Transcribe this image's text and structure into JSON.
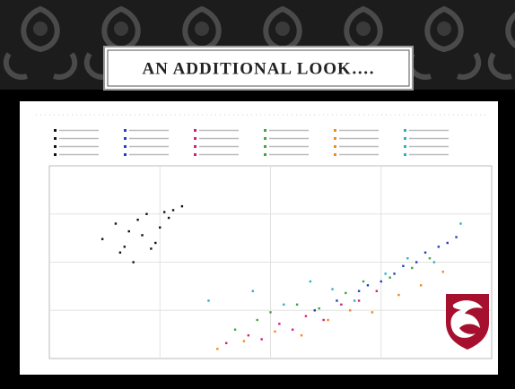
{
  "slide": {
    "title": "AN ADDITIONAL LOOK…."
  },
  "chart_data": {
    "type": "scatter",
    "xlim": [
      0,
      100
    ],
    "ylim": [
      0,
      100
    ],
    "series": [
      {
        "color": "#111111",
        "x": [
          12,
          15,
          17,
          18,
          20,
          21,
          22,
          24,
          25,
          27,
          28,
          30,
          16,
          19,
          23,
          26
        ],
        "values": [
          62,
          70,
          58,
          66,
          72,
          64,
          75,
          60,
          68,
          73,
          77,
          79,
          55,
          50,
          57,
          76
        ]
      },
      {
        "color": "#1f3fbf",
        "x": [
          60,
          65,
          70,
          72,
          75,
          78,
          80,
          83,
          85,
          88,
          90,
          92
        ],
        "values": [
          25,
          30,
          35,
          38,
          40,
          44,
          48,
          50,
          55,
          58,
          60,
          63
        ]
      },
      {
        "color": "#d0207a",
        "x": [
          40,
          45,
          48,
          52,
          55,
          58,
          62,
          66,
          70,
          74
        ],
        "values": [
          8,
          12,
          10,
          18,
          15,
          22,
          20,
          28,
          30,
          35
        ]
      },
      {
        "color": "#3aa83a",
        "x": [
          42,
          47,
          50,
          56,
          61,
          67,
          71,
          77,
          82,
          86
        ],
        "values": [
          15,
          20,
          24,
          28,
          26,
          34,
          40,
          42,
          47,
          52
        ]
      },
      {
        "color": "#f08a1c",
        "x": [
          38,
          44,
          51,
          57,
          63,
          68,
          73,
          79,
          84,
          89
        ],
        "values": [
          5,
          9,
          14,
          12,
          20,
          25,
          24,
          33,
          38,
          45
        ]
      },
      {
        "color": "#2ab0c8",
        "x": [
          36,
          46,
          53,
          59,
          64,
          69,
          76,
          81,
          87,
          93
        ],
        "values": [
          30,
          35,
          28,
          40,
          36,
          30,
          44,
          52,
          50,
          70
        ]
      }
    ]
  }
}
